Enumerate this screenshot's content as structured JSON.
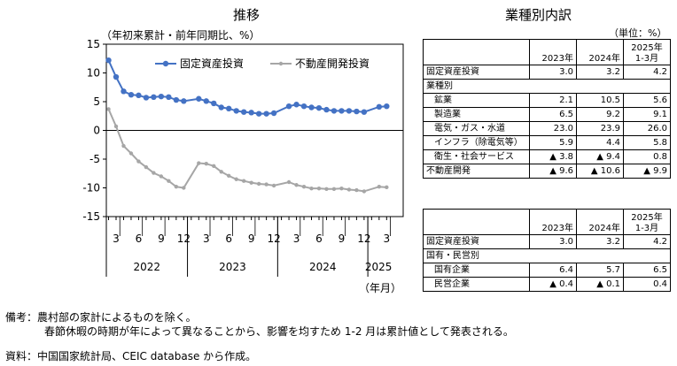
{
  "left_panel": {
    "title": "推移",
    "subtitle": "（年初来累計・前年同期比、%）",
    "x_unit_label": "（年月）"
  },
  "chart_data": {
    "type": "line",
    "ylim": [
      -15,
      15
    ],
    "y_ticks": [
      15,
      10,
      5,
      0,
      -5,
      -10,
      -15
    ],
    "x_month_ticks": [
      "3",
      "6",
      "9",
      "12",
      "3",
      "6",
      "9",
      "12",
      "3",
      "6",
      "9",
      "12",
      "3"
    ],
    "x_year_labels": [
      "2022",
      "2023",
      "2024",
      "2025"
    ],
    "x": [
      "2022-02",
      "2022-03",
      "2022-04",
      "2022-05",
      "2022-06",
      "2022-07",
      "2022-08",
      "2022-09",
      "2022-10",
      "2022-11",
      "2022-12",
      "2023-02",
      "2023-03",
      "2023-04",
      "2023-05",
      "2023-06",
      "2023-07",
      "2023-08",
      "2023-09",
      "2023-10",
      "2023-11",
      "2023-12",
      "2024-02",
      "2024-03",
      "2024-04",
      "2024-05",
      "2024-06",
      "2024-07",
      "2024-08",
      "2024-09",
      "2024-10",
      "2024-11",
      "2024-12",
      "2025-02",
      "2025-03"
    ],
    "series": [
      {
        "name": "固定資産投資",
        "color": "#4472c4",
        "marker": "circle",
        "values": [
          12.2,
          9.3,
          6.8,
          6.2,
          6.1,
          5.7,
          5.8,
          5.9,
          5.8,
          5.3,
          5.1,
          5.5,
          5.1,
          4.7,
          4.0,
          3.8,
          3.4,
          3.2,
          3.1,
          2.9,
          2.9,
          3.0,
          4.2,
          4.5,
          4.2,
          4.0,
          3.9,
          3.6,
          3.4,
          3.4,
          3.4,
          3.3,
          3.2,
          4.1,
          4.2
        ]
      },
      {
        "name": "不動産開発投資",
        "color": "#a6a6a6",
        "marker": "circle",
        "values": [
          3.7,
          0.7,
          -2.7,
          -4.0,
          -5.4,
          -6.4,
          -7.4,
          -8.0,
          -8.8,
          -9.8,
          -10.0,
          -5.7,
          -5.8,
          -6.2,
          -7.2,
          -7.9,
          -8.5,
          -8.8,
          -9.1,
          -9.3,
          -9.4,
          -9.6,
          -9.0,
          -9.5,
          -9.8,
          -10.1,
          -10.1,
          -10.2,
          -10.2,
          -10.1,
          -10.3,
          -10.4,
          -10.6,
          -9.8,
          -9.9
        ]
      }
    ]
  },
  "right_panel": {
    "title": "業種別内訳",
    "unit_note": "（単位：%）",
    "table1": {
      "headers": [
        "",
        "2023年",
        "2024年",
        "2025年\n1-3月"
      ],
      "rows": [
        {
          "label": "固定資産投資",
          "indent": 0,
          "v": [
            "3.0",
            "3.2",
            "4.2"
          ]
        },
        {
          "label": "業種別",
          "indent": 0,
          "v": [
            "",
            "",
            ""
          ],
          "section": true
        },
        {
          "label": "鉱業",
          "indent": 1,
          "v": [
            "2.1",
            "10.5",
            "5.6"
          ]
        },
        {
          "label": "製造業",
          "indent": 1,
          "v": [
            "6.5",
            "9.2",
            "9.1"
          ]
        },
        {
          "label": "電気・ガス・水道",
          "indent": 1,
          "v": [
            "23.0",
            "23.9",
            "26.0"
          ]
        },
        {
          "label": "インフラ（除電気等）",
          "indent": 1,
          "v": [
            "5.9",
            "4.4",
            "5.8"
          ]
        },
        {
          "label": "衛生・社会サービス",
          "indent": 1,
          "v": [
            "▲ 3.8",
            "▲ 9.4",
            "0.8"
          ]
        },
        {
          "label": "不動産開発",
          "indent": 0,
          "v": [
            "▲ 9.6",
            "▲ 10.6",
            "▲ 9.9"
          ]
        }
      ]
    },
    "table2": {
      "headers": [
        "",
        "2023年",
        "2024年",
        "2025年\n1-3月"
      ],
      "rows": [
        {
          "label": "固定資産投資",
          "indent": 0,
          "v": [
            "3.0",
            "3.2",
            "4.2"
          ]
        },
        {
          "label": "国有・民営別",
          "indent": 0,
          "v": [
            "",
            "",
            ""
          ],
          "section": true
        },
        {
          "label": "国有企業",
          "indent": 1,
          "v": [
            "6.4",
            "5.7",
            "6.5"
          ]
        },
        {
          "label": "民営企業",
          "indent": 1,
          "v": [
            "▲ 0.4",
            "▲ 0.1",
            "0.4"
          ]
        }
      ]
    }
  },
  "notes": {
    "line1": "備考：農村部の家計によるものを除く。",
    "line2": "春節休暇の時期が年によって異なることから、影響を均すため 1-2 月は累計値として発表される。",
    "line3": "資料：中国国家統計局、CEIC database から作成。"
  }
}
